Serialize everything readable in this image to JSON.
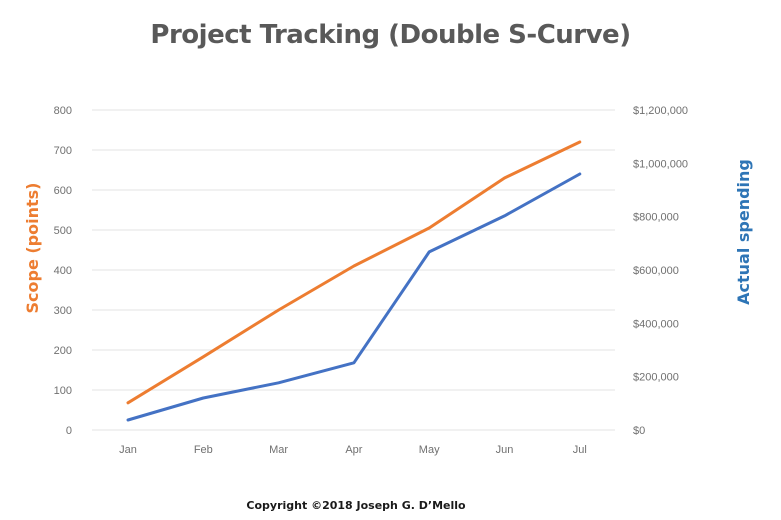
{
  "chart_data": {
    "type": "line",
    "title": "Project Tracking  (Double S-Curve)",
    "footer": "Copyright ©2018 Joseph G. D’Mello",
    "categories": [
      "Jan",
      "Feb",
      "Mar",
      "Apr",
      "May",
      "Jun",
      "Jul"
    ],
    "xlabel": "",
    "y_left": {
      "label": "Scope (points)",
      "color": "#ED7D31",
      "ylim": [
        0,
        800
      ],
      "ticks": [
        0,
        100,
        200,
        300,
        400,
        500,
        600,
        700,
        800
      ],
      "tick_labels": [
        "0",
        "100",
        "200",
        "300",
        "400",
        "500",
        "600",
        "700",
        "800"
      ]
    },
    "y_right": {
      "label": "Actual spending",
      "color": "#2E75B6",
      "ylim": [
        0,
        1200000
      ],
      "ticks": [
        0,
        200000,
        400000,
        600000,
        800000,
        1000000,
        1200000
      ],
      "tick_labels": [
        "$0",
        "$200,000",
        "$400,000",
        "$600,000",
        "$800,000",
        "$1,000,000",
        "$1,200,000"
      ]
    },
    "series": [
      {
        "name": "Scope (points)",
        "axis": "left",
        "color": "#ED7D31",
        "values": [
          68,
          183,
          300,
          410,
          505,
          630,
          720
        ]
      },
      {
        "name": "Actual spending",
        "axis": "right",
        "color": "#4472C4",
        "values": [
          37500,
          120000,
          177000,
          252000,
          668000,
          803000,
          960000
        ]
      }
    ],
    "grid": true,
    "legend": "none"
  }
}
